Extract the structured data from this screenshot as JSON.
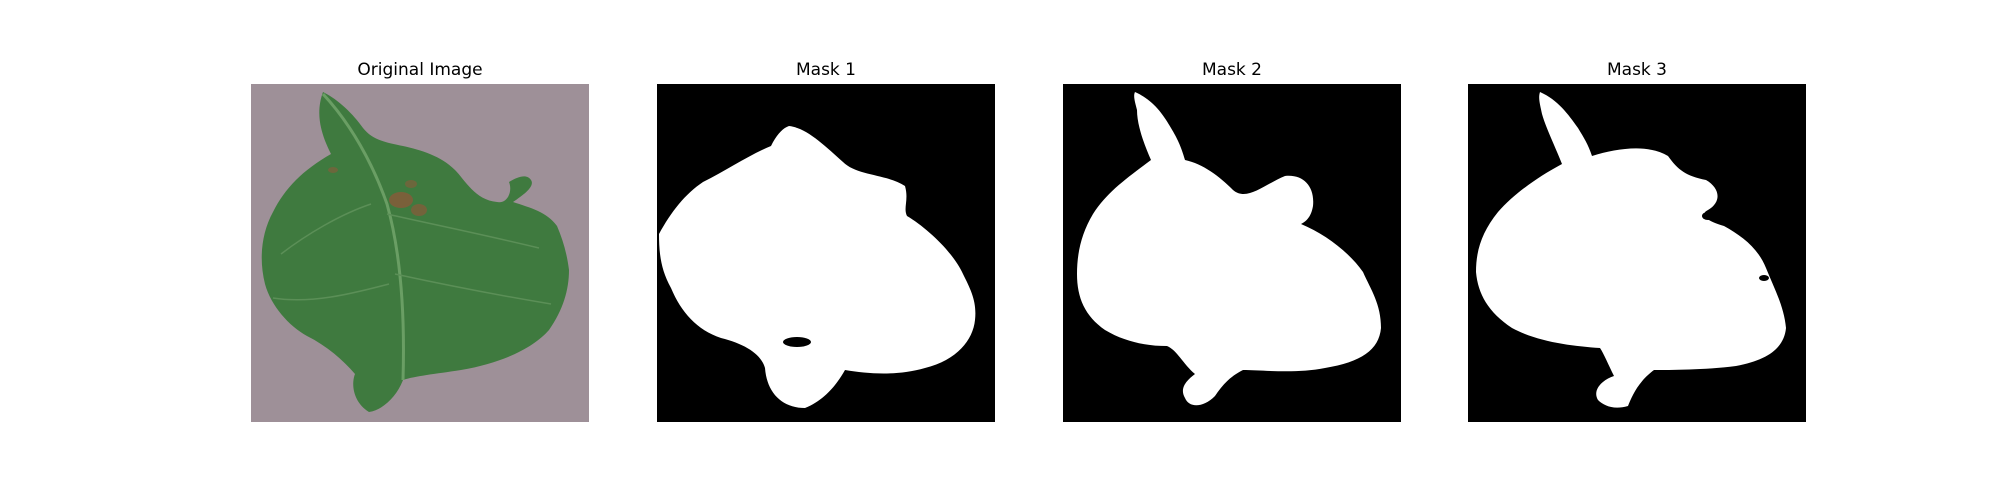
{
  "figure": {
    "panels": [
      {
        "title": "Original Image",
        "kind": "photo",
        "subject": "leaf-icon"
      },
      {
        "title": "Mask 1",
        "kind": "mask"
      },
      {
        "title": "Mask 2",
        "kind": "mask"
      },
      {
        "title": "Mask 3",
        "kind": "mask"
      }
    ]
  },
  "colors": {
    "background": "#ffffff",
    "photo_background": "#9e9098",
    "leaf": "#3f7a3f",
    "leaf_dark": "#2c5b2d",
    "lesion": "#8a5a3a",
    "mask_background": "#000000",
    "mask_foreground": "#ffffff"
  }
}
